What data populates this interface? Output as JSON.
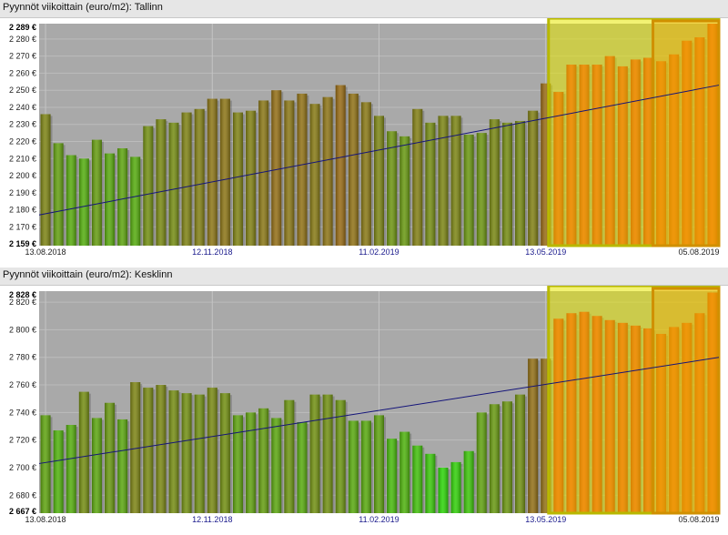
{
  "charts": [
    {
      "title": "Pyynnöt viikoittain (euro/m2): Tallinn"
    },
    {
      "title": "Pyynnöt viikoittain (euro/m2): Kesklinn"
    }
  ],
  "chart_data": [
    {
      "type": "bar",
      "title": "Pyynnöt viikoittain (euro/m2): Tallinn",
      "ylim": [
        2159,
        2289
      ],
      "yticks": [
        2170,
        2180,
        2190,
        2200,
        2210,
        2220,
        2230,
        2240,
        2250,
        2260,
        2270,
        2280
      ],
      "ytick_format": "{v} €",
      "ymin_label": "2 159 €",
      "ymax_label": "2 289 €",
      "xtick_labels": [
        "13.08.2018",
        "12.11.2018",
        "11.02.2019",
        "13.05.2019",
        "05.08.2019"
      ],
      "xtick_index": [
        0,
        13,
        26,
        39,
        52
      ],
      "grid": true,
      "trend_line": [
        2177,
        2253
      ],
      "highlight_ranges": [
        [
          40,
          52
        ],
        [
          48,
          52
        ]
      ],
      "values": [
        2236,
        2219,
        2212,
        2210,
        2221,
        2213,
        2216,
        2211,
        2229,
        2233,
        2231,
        2237,
        2239,
        2245,
        2245,
        2237,
        2238,
        2244,
        2250,
        2244,
        2248,
        2242,
        2246,
        2253,
        2248,
        2243,
        2235,
        2226,
        2223,
        2239,
        2231,
        2235,
        2235,
        2224,
        2225,
        2233,
        2231,
        2232,
        2238,
        2254,
        2249,
        2265,
        2265,
        2265,
        2270,
        2264,
        2268,
        2269,
        2267,
        2271,
        2279,
        2281,
        2289
      ]
    },
    {
      "type": "bar",
      "title": "Pyynnöt viikoittain (euro/m2): Kesklinn",
      "ylim": [
        2667,
        2828
      ],
      "yticks": [
        2680,
        2700,
        2720,
        2740,
        2760,
        2780,
        2800,
        2820
      ],
      "ytick_format": "{v} €",
      "ymin_label": "2 667 €",
      "ymax_label": "2 828 €",
      "xtick_labels": [
        "13.08.2018",
        "12.11.2018",
        "11.02.2019",
        "13.05.2019",
        "05.08.2019"
      ],
      "xtick_index": [
        0,
        13,
        26,
        39,
        52
      ],
      "grid": true,
      "trend_line": [
        2703,
        2780
      ],
      "highlight_ranges": [
        [
          40,
          52
        ],
        [
          48,
          52
        ]
      ],
      "values": [
        2738,
        2727,
        2731,
        2755,
        2736,
        2747,
        2735,
        2762,
        2758,
        2760,
        2756,
        2754,
        2753,
        2758,
        2754,
        2738,
        2740,
        2743,
        2736,
        2749,
        2733,
        2753,
        2753,
        2749,
        2734,
        2734,
        2738,
        2721,
        2726,
        2716,
        2710,
        2700,
        2704,
        2712,
        2740,
        2746,
        2748,
        2753,
        2779,
        2779,
        2808,
        2812,
        2813,
        2810,
        2807,
        2805,
        2803,
        2801,
        2797,
        2802,
        2805,
        2812,
        2827
      ]
    }
  ]
}
